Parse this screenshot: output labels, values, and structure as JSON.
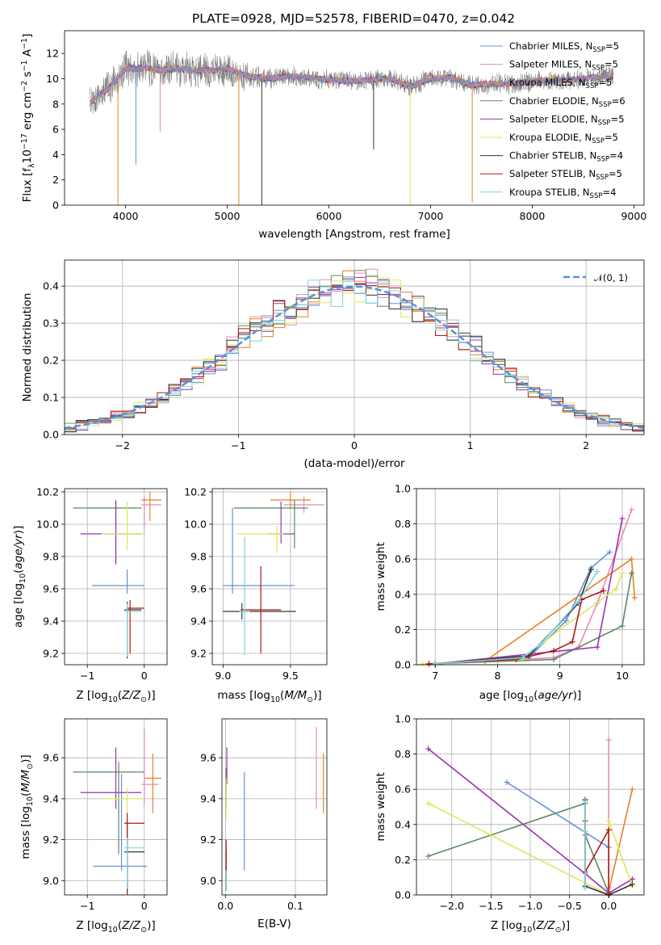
{
  "figure_title": "PLATE=0928, MJD=52578, FIBERID=0470, z=0.042",
  "colors": {
    "Chabrier MILES": "#6a8fdc",
    "Salpeter MILES": "#e88bb8",
    "Kroupa MILES": "#e98023",
    "Chabrier ELODIE": "#5a8a5e",
    "Salpeter ELODIE": "#9b33b0",
    "Kroupa ELODIE": "#dbe85a",
    "Chabrier STELIB": "#333333",
    "Salpeter STELIB": "#b01818",
    "Kroupa STELIB": "#7fd4dc",
    "data": "#808080",
    "normal": "#5b8fe0",
    "grid": "#b0b0b0"
  },
  "legend_spectrum": [
    {
      "model": "Chabrier MILES",
      "pre": "Chabrier MILES, N",
      "sub": "SSP",
      "post": "=5"
    },
    {
      "model": "Salpeter MILES",
      "pre": "Salpeter MILES, N",
      "sub": "SSP",
      "post": "=5"
    },
    {
      "model": "Kroupa MILES",
      "pre": "Kroupa MILES, N",
      "sub": "SSP",
      "post": "=5"
    },
    {
      "model": "Chabrier ELODIE",
      "pre": "Chabrier ELODIE, N",
      "sub": "SSP",
      "post": "=6"
    },
    {
      "model": "Salpeter ELODIE",
      "pre": "Salpeter ELODIE, N",
      "sub": "SSP",
      "post": "=5"
    },
    {
      "model": "Kroupa ELODIE",
      "pre": "Kroupa ELODIE, N",
      "sub": "SSP",
      "post": "=5"
    },
    {
      "model": "Chabrier STELIB",
      "pre": "Chabrier STELIB, N",
      "sub": "SSP",
      "post": "=4"
    },
    {
      "model": "Salpeter STELIB",
      "pre": "Salpeter STELIB, N",
      "sub": "SSP",
      "post": "=5"
    },
    {
      "model": "Kroupa STELIB",
      "pre": "Kroupa STELIB, N",
      "sub": "SSP",
      "post": "=4"
    }
  ],
  "legend_hist": "𝒩(0, 1)",
  "chart_data": [
    {
      "id": "spectrum",
      "type": "line",
      "xlabel": "wavelength [Angstrom, rest frame]",
      "ylabel": "Flux [f_λ 10^-17 erg cm^-2 s^-1 A^-1]",
      "xlim": [
        3400,
        9100
      ],
      "ylim": [
        0,
        13.8
      ],
      "xticks": [
        4000,
        5000,
        6000,
        7000,
        8000,
        9000
      ],
      "yticks": [
        0,
        2,
        4,
        6,
        8,
        10,
        12
      ],
      "grid": false,
      "legend_position": "right",
      "continuum": {
        "x": [
          3650,
          3700,
          3800,
          3900,
          4000,
          4100,
          4200,
          4300,
          4500,
          4700,
          4900,
          5000,
          5200,
          5400,
          5600,
          5800,
          6000,
          6200,
          6400,
          6600,
          6800,
          7000,
          7200,
          7400,
          7600,
          7800,
          8000,
          8200,
          8400,
          8600,
          8800
        ],
        "y": [
          8.0,
          8.4,
          9.0,
          9.8,
          10.8,
          10.8,
          10.9,
          10.7,
          10.8,
          10.6,
          10.7,
          10.8,
          10.2,
          10.0,
          10.2,
          10.1,
          9.9,
          9.8,
          9.9,
          10.0,
          9.4,
          10.0,
          10.1,
          9.5,
          9.6,
          9.6,
          9.8,
          9.9,
          9.9,
          10.1,
          10.3
        ]
      },
      "drops": [
        {
          "model": "Kroupa MILES",
          "x": 3925,
          "y": 0
        },
        {
          "model": "Chabrier MILES",
          "x": 4101,
          "y": 3.2
        },
        {
          "model": "Salpeter MILES",
          "x": 4340,
          "y": 5.8
        },
        {
          "model": "Kroupa MILES",
          "x": 5114,
          "y": 0
        },
        {
          "model": "Chabrier STELIB",
          "x": 5340,
          "y": 0
        },
        {
          "model": "Chabrier STELIB",
          "x": 6440,
          "y": 4.4
        },
        {
          "model": "Kroupa ELODIE",
          "x": 6800,
          "y": 0
        },
        {
          "model": "Kroupa MILES",
          "x": 7410,
          "y": 0.2
        }
      ]
    },
    {
      "id": "residuals",
      "type": "bar",
      "xlabel": "(data-model)/error",
      "ylabel": "Normed distribution",
      "xlim": [
        -2.5,
        2.5
      ],
      "ylim": [
        0,
        0.47
      ],
      "xticks": [
        -2,
        -1,
        0,
        1,
        2
      ],
      "yticks": [
        0.0,
        0.1,
        0.2,
        0.3,
        0.4
      ],
      "grid": true,
      "legend_position": "top-right",
      "bin_width": 0.1,
      "normal_mean": 0,
      "normal_sigma": 1
    },
    {
      "id": "age_vs_Z",
      "type": "scatter",
      "xlabel_pre": "Z [log",
      "xlabel_post": "(Z/Z",
      "xlabel_end": ")]",
      "ylabel_pre": "age  [log",
      "ylabel_post": "(age/yr)]",
      "xlim": [
        -1.4,
        0.4
      ],
      "ylim": [
        9.13,
        10.22
      ],
      "xticks": [
        -1,
        0
      ],
      "yticks": [
        9.2,
        9.4,
        9.6,
        9.8,
        10.0,
        10.2
      ],
      "grid": true,
      "points": [
        {
          "model": "Chabrier MILES",
          "x": -0.3,
          "y": 9.62,
          "xerr": [
            0.62,
            0.3
          ],
          "yerr": [
            0.05,
            0.1
          ]
        },
        {
          "model": "Salpeter MILES",
          "x": 0.0,
          "y": 10.12,
          "xerr": [
            0.05,
            0.3
          ],
          "yerr": [
            0.15,
            0.05
          ]
        },
        {
          "model": "Kroupa MILES",
          "x": 0.1,
          "y": 10.15,
          "xerr": [
            0.15,
            0.2
          ],
          "yerr": [
            0.13,
            0.05
          ]
        },
        {
          "model": "Chabrier ELODIE",
          "x": -0.5,
          "y": 10.1,
          "xerr": [
            0.75,
            0.45
          ],
          "yerr": [
            0.35,
            0.05
          ]
        },
        {
          "model": "Salpeter ELODIE",
          "x": -0.5,
          "y": 9.94,
          "xerr": [
            0.62,
            0.45
          ],
          "yerr": [
            0.18,
            0.2
          ]
        },
        {
          "model": "Kroupa ELODIE",
          "x": -0.3,
          "y": 9.94,
          "xerr": [
            0.45,
            0.3
          ],
          "yerr": [
            0.1,
            0.2
          ]
        },
        {
          "model": "Chabrier STELIB",
          "x": -0.3,
          "y": 9.47,
          "xerr": [
            0.05,
            0.25
          ],
          "yerr": [
            0.3,
            0.05
          ]
        },
        {
          "model": "Salpeter STELIB",
          "x": -0.25,
          "y": 9.48,
          "xerr": [
            0.05,
            0.25
          ],
          "yerr": [
            0.28,
            0.05
          ]
        },
        {
          "model": "Kroupa STELIB",
          "x": -0.3,
          "y": 9.46,
          "xerr": [
            0.05,
            0.25
          ],
          "yerr": [
            0.28,
            0.05
          ]
        }
      ]
    },
    {
      "id": "age_vs_mass",
      "type": "scatter",
      "xlabel_pre": "mass [log",
      "xlabel_post": "(M/M",
      "xlabel_end": ")]",
      "xlim": [
        8.92,
        9.77
      ],
      "ylim": [
        9.13,
        10.22
      ],
      "xticks": [
        9.0,
        9.5
      ],
      "yticks": [
        9.2,
        9.4,
        9.6,
        9.8,
        10.0,
        10.2
      ],
      "grid": true,
      "points": [
        {
          "model": "Chabrier MILES",
          "x": 9.07,
          "y": 9.62,
          "xerr": [
            0.07,
            0.46
          ],
          "yerr": [
            0.05,
            0.48
          ]
        },
        {
          "model": "Salpeter MILES",
          "x": 9.6,
          "y": 10.12,
          "xerr": [
            0.15,
            0.15
          ],
          "yerr": [
            0.05,
            0.05
          ]
        },
        {
          "model": "Kroupa MILES",
          "x": 9.5,
          "y": 10.15,
          "xerr": [
            0.15,
            0.15
          ],
          "yerr": [
            0.05,
            0.05
          ]
        },
        {
          "model": "Chabrier ELODIE",
          "x": 9.53,
          "y": 10.1,
          "xerr": [
            0.45,
            0.1
          ],
          "yerr": [
            0.25,
            0.05
          ]
        },
        {
          "model": "Salpeter ELODIE",
          "x": 9.43,
          "y": 9.94,
          "xerr": [
            0.1,
            0.1
          ],
          "yerr": [
            0.06,
            0.2
          ]
        },
        {
          "model": "Kroupa ELODIE",
          "x": 9.4,
          "y": 9.94,
          "xerr": [
            0.3,
            0.05
          ],
          "yerr": [
            0.12,
            0.05
          ]
        },
        {
          "model": "Chabrier STELIB",
          "x": 9.14,
          "y": 9.46,
          "xerr": [
            0.14,
            0.4
          ],
          "yerr": [
            0.05,
            0.05
          ]
        },
        {
          "model": "Salpeter STELIB",
          "x": 9.28,
          "y": 9.47,
          "xerr": [
            0.15,
            0.15
          ],
          "yerr": [
            0.27,
            0.27
          ]
        },
        {
          "model": "Kroupa STELIB",
          "x": 9.16,
          "y": 9.46,
          "xerr": [
            0.04,
            0.04
          ],
          "yerr": [
            0.27,
            0.46
          ]
        }
      ]
    },
    {
      "id": "mass_weight_vs_age",
      "type": "line",
      "xlabel_pre": "age  [log",
      "xlabel_post": "(age/yr)]",
      "ylabel": "mass weight",
      "xlim": [
        6.7,
        10.35
      ],
      "ylim": [
        0,
        1.0
      ],
      "xticks": [
        7,
        8,
        9,
        10
      ],
      "yticks": [
        0.0,
        0.2,
        0.4,
        0.6,
        0.8,
        1.0
      ],
      "grid": true,
      "series": [
        {
          "model": "Chabrier MILES",
          "x": [
            7.0,
            8.5,
            9.1,
            9.5,
            9.8
          ],
          "y": [
            0.005,
            0.04,
            0.25,
            0.55,
            0.64
          ]
        },
        {
          "model": "Salpeter MILES",
          "x": [
            6.9,
            8.9,
            9.3,
            9.6,
            10.15
          ],
          "y": [
            0.005,
            0.04,
            0.1,
            0.35,
            0.88
          ]
        },
        {
          "model": "Kroupa MILES",
          "x": [
            7.0,
            7.8,
            10.15,
            10.2
          ],
          "y": [
            0.005,
            0.02,
            0.6,
            0.38
          ]
        },
        {
          "model": "Chabrier ELODIE",
          "x": [
            6.9,
            8.9,
            10.0,
            10.15
          ],
          "y": [
            0.005,
            0.03,
            0.22,
            0.52
          ]
        },
        {
          "model": "Salpeter ELODIE",
          "x": [
            7.0,
            9.6,
            10.0
          ],
          "y": [
            0.005,
            0.1,
            0.83
          ]
        },
        {
          "model": "Kroupa ELODIE",
          "x": [
            6.8,
            8.4,
            9.0,
            9.9,
            10.0
          ],
          "y": [
            0.005,
            0.03,
            0.2,
            0.43,
            0.52
          ]
        },
        {
          "model": "Chabrier STELIB",
          "x": [
            7.0,
            8.5,
            9.3,
            9.5
          ],
          "y": [
            0.005,
            0.05,
            0.35,
            0.54
          ]
        },
        {
          "model": "Salpeter STELIB",
          "x": [
            6.9,
            8.3,
            8.9,
            9.2,
            9.35,
            9.7
          ],
          "y": [
            0.005,
            0.03,
            0.08,
            0.13,
            0.37,
            0.42
          ]
        },
        {
          "model": "Kroupa STELIB",
          "x": [
            7.0,
            8.4,
            8.7,
            9.3,
            9.6
          ],
          "y": [
            0.005,
            0.04,
            0.12,
            0.36,
            0.53
          ]
        }
      ]
    },
    {
      "id": "mass_vs_Z",
      "type": "scatter",
      "xlabel_pre": "Z [log",
      "xlabel_post": "(Z/Z",
      "xlabel_end": ")]",
      "ylabel_pre": "mass [log",
      "ylabel_post": "(M/M",
      "ylabel_end": ")]",
      "xlim": [
        -1.4,
        0.4
      ],
      "ylim": [
        8.93,
        9.79
      ],
      "xticks": [
        -1,
        0
      ],
      "yticks": [
        9.0,
        9.2,
        9.4,
        9.6
      ],
      "grid": true,
      "points": [
        {
          "model": "Chabrier MILES",
          "x": -0.4,
          "y": 9.07,
          "xerr": [
            0.5,
            0.45
          ],
          "yerr": [
            0.02,
            0.45
          ]
        },
        {
          "model": "Salpeter MILES",
          "x": 0.0,
          "y": 9.47,
          "xerr": [
            0.05,
            0.25
          ],
          "yerr": [
            0.1,
            0.27
          ]
        },
        {
          "model": "Kroupa MILES",
          "x": 0.15,
          "y": 9.5,
          "xerr": [
            0.15,
            0.15
          ],
          "yerr": [
            0.17,
            0.12
          ]
        },
        {
          "model": "Chabrier ELODIE",
          "x": -0.45,
          "y": 9.53,
          "xerr": [
            0.8,
            0.45
          ],
          "yerr": [
            0.4,
            0.05
          ]
        },
        {
          "model": "Salpeter ELODIE",
          "x": -0.5,
          "y": 9.43,
          "xerr": [
            0.62,
            0.45
          ],
          "yerr": [
            0.08,
            0.22
          ]
        },
        {
          "model": "Kroupa ELODIE",
          "x": -0.3,
          "y": 9.4,
          "xerr": [
            0.45,
            0.3
          ],
          "yerr": [
            0.25,
            0.05
          ]
        },
        {
          "model": "Chabrier STELIB",
          "x": -0.3,
          "y": 9.14,
          "xerr": [
            0.05,
            0.3
          ],
          "yerr": [
            0.2,
            0.15
          ]
        },
        {
          "model": "Salpeter STELIB",
          "x": -0.3,
          "y": 9.28,
          "xerr": [
            0.05,
            0.3
          ],
          "yerr": [
            0.35,
            0.05
          ]
        },
        {
          "model": "Kroupa STELIB",
          "x": -0.3,
          "y": 9.16,
          "xerr": [
            0.05,
            0.3
          ],
          "yerr": [
            0.2,
            0.05
          ]
        }
      ]
    },
    {
      "id": "mass_vs_EBV",
      "type": "scatter",
      "xlabel": "E(B-V)",
      "xlim": [
        -0.005,
        0.145
      ],
      "ylim": [
        8.93,
        9.79
      ],
      "xticks": [
        0.0,
        0.1
      ],
      "yticks": [
        9.0,
        9.2,
        9.4,
        9.6
      ],
      "grid": true,
      "points": [
        {
          "model": "Chabrier MILES",
          "x": 0.027,
          "y": 9.2,
          "yerr": [
            0.15,
            0.33
          ]
        },
        {
          "model": "Salpeter MILES",
          "x": 0.13,
          "y": 9.55,
          "yerr": [
            0.2,
            0.2
          ]
        },
        {
          "model": "Kroupa MILES",
          "x": 0.14,
          "y": 9.48,
          "yerr": [
            0.15,
            0.14
          ]
        },
        {
          "model": "Chabrier ELODIE",
          "x": 0.001,
          "y": 9.45,
          "yerr": [
            0.1,
            0.1
          ]
        },
        {
          "model": "Salpeter ELODIE",
          "x": 0.002,
          "y": 9.52,
          "yerr": [
            0.05,
            0.13
          ]
        },
        {
          "model": "Kroupa ELODIE",
          "x": 0.001,
          "y": 9.4,
          "yerr": [
            0.1,
            0.1
          ]
        },
        {
          "model": "Chabrier STELIB",
          "x": 0.001,
          "y": 9.05,
          "yerr": [
            0.1,
            0.1
          ]
        },
        {
          "model": "Salpeter STELIB",
          "x": 0.001,
          "y": 9.1,
          "yerr": [
            0.1,
            0.1
          ]
        },
        {
          "model": "Kroupa STELIB",
          "x": 0.001,
          "y": 9.0,
          "yerr": [
            0.05,
            0.05
          ]
        }
      ]
    },
    {
      "id": "mass_weight_vs_Z",
      "type": "line",
      "xlabel_pre": "Z [log",
      "xlabel_post": "(Z/Z",
      "xlabel_end": ")]",
      "ylabel": "mass weight",
      "xlim": [
        -2.45,
        0.45
      ],
      "ylim": [
        0,
        1.0
      ],
      "xticks": [
        -2.0,
        -1.5,
        -1.0,
        -0.5,
        0.0
      ],
      "yticks": [
        0.0,
        0.2,
        0.4,
        0.6,
        0.8,
        1.0
      ],
      "grid": true,
      "series": [
        {
          "model": "Chabrier MILES",
          "x": [
            -1.3,
            0.0,
            0.0
          ],
          "y": [
            0.64,
            0.27,
            0.04
          ]
        },
        {
          "model": "Salpeter MILES",
          "x": [
            0.0,
            0.0,
            0.0
          ],
          "y": [
            0.88,
            0.04,
            0.0
          ]
        },
        {
          "model": "Kroupa MILES",
          "x": [
            0.3,
            0.0,
            0.0
          ],
          "y": [
            0.6,
            0.02,
            0.0
          ]
        },
        {
          "model": "Chabrier ELODIE",
          "x": [
            -2.3,
            -0.3,
            -0.3,
            0.0
          ],
          "y": [
            0.22,
            0.52,
            0.34,
            0.01
          ]
        },
        {
          "model": "Salpeter ELODIE",
          "x": [
            -2.3,
            -0.3,
            0.0,
            0.3
          ],
          "y": [
            0.83,
            0.12,
            0.01,
            0.09
          ]
        },
        {
          "model": "Kroupa ELODIE",
          "x": [
            -2.3,
            0.0,
            0.0,
            0.3
          ],
          "y": [
            0.52,
            0.0,
            0.42,
            0.05
          ]
        },
        {
          "model": "Chabrier STELIB",
          "x": [
            -0.3,
            -0.3,
            0.0,
            0.3
          ],
          "y": [
            0.54,
            0.05,
            0.0,
            0.06
          ]
        },
        {
          "model": "Salpeter STELIB",
          "x": [
            -0.3,
            -0.3,
            0.0,
            0.0
          ],
          "y": [
            0.42,
            0.13,
            0.37,
            0.0
          ]
        },
        {
          "model": "Kroupa STELIB",
          "x": [
            -0.3,
            -0.3,
            -0.3,
            -0.3
          ],
          "y": [
            0.53,
            0.36,
            0.12,
            0.04
          ]
        }
      ]
    }
  ]
}
